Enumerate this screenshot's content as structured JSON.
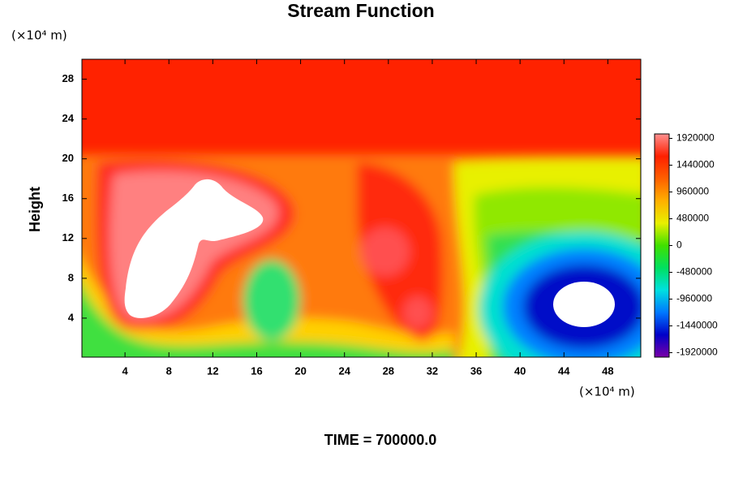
{
  "chart_data": {
    "type": "contour",
    "title": "Stream Function",
    "y_unit": "(×10⁴ m)",
    "x_unit": "(×10⁴ m)",
    "ylabel": "Height",
    "footer": "TIME = 700000.0",
    "xlim": [
      0,
      51
    ],
    "ylim": [
      0,
      30
    ],
    "xticks": [
      4,
      8,
      12,
      16,
      20,
      24,
      28,
      32,
      36,
      40,
      44,
      48
    ],
    "yticks": [
      4,
      8,
      12,
      16,
      20,
      24,
      28
    ],
    "colorbar": {
      "lim": [
        -2000000,
        2000000
      ],
      "ticks": [
        -1920000,
        -1440000,
        -960000,
        -480000,
        0,
        480000,
        960000,
        1440000,
        1920000
      ],
      "colors": [
        "#7a00a8",
        "#0000c8",
        "#0078ff",
        "#00e0e0",
        "#00e060",
        "#40e000",
        "#e8f000",
        "#ffb000",
        "#ff6000",
        "#ff2000",
        "#ff9090"
      ]
    }
  }
}
